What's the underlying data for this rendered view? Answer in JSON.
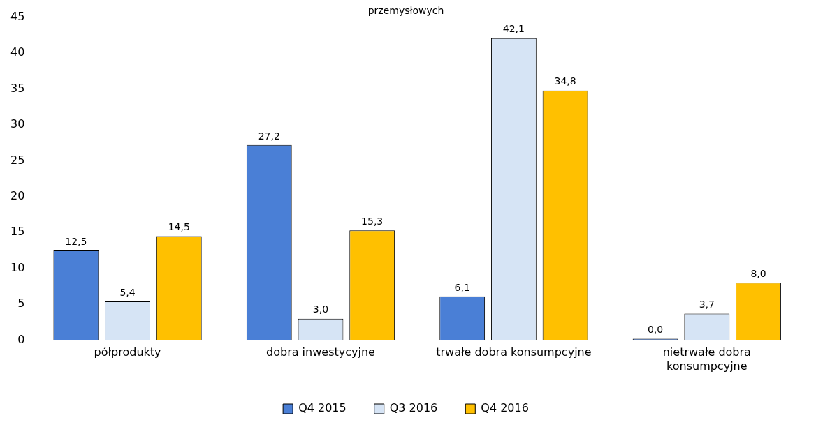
{
  "chart_data": {
    "type": "bar",
    "title": "przemysłowych",
    "categories": [
      "półprodukty",
      "dobra inwestycyjne",
      "trwałe dobra konsumpcyjne",
      "nietrwałe dobra konsumpcyjne"
    ],
    "series": [
      {
        "name": "Q4 2015",
        "color": "#4a7fd6",
        "values": [
          12.5,
          27.2,
          6.1,
          0.0
        ],
        "value_labels": [
          "12,5",
          "27,2",
          "6,1",
          "0,0"
        ]
      },
      {
        "name": "Q3 2016",
        "color": "#d6e4f5",
        "values": [
          5.4,
          3.0,
          42.1,
          3.7
        ],
        "value_labels": [
          "5,4",
          "3,0",
          "42,1",
          "3,7"
        ]
      },
      {
        "name": "Q4 2016",
        "color": "#ffc000",
        "values": [
          14.5,
          15.3,
          34.8,
          8.0
        ],
        "value_labels": [
          "14,5",
          "15,3",
          "34,8",
          "8,0"
        ]
      }
    ],
    "ylim": [
      0,
      45
    ],
    "yticks": [
      0,
      5,
      10,
      15,
      20,
      25,
      30,
      35,
      40,
      45
    ],
    "grid": false,
    "legend": "bottom"
  }
}
